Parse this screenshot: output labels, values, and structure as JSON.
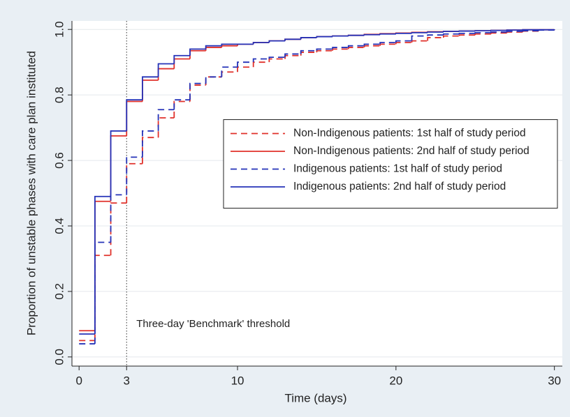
{
  "chart_data": {
    "type": "step",
    "xlabel": "Time (days)",
    "ylabel": "Proportion of unstable phases with care plan instituted",
    "x": [
      0,
      1,
      2,
      3,
      4,
      5,
      6,
      7,
      8,
      9,
      10,
      11,
      12,
      13,
      14,
      15,
      16,
      17,
      18,
      19,
      20,
      21,
      22,
      23,
      24,
      25,
      26,
      27,
      28,
      29,
      30
    ],
    "series": [
      {
        "name": "Non-Indigenous patients: 1st half of study period",
        "color": "#e0302a",
        "style": "dashed",
        "values": [
          0.05,
          0.31,
          0.47,
          0.59,
          0.67,
          0.73,
          0.78,
          0.83,
          0.855,
          0.87,
          0.885,
          0.9,
          0.91,
          0.92,
          0.93,
          0.935,
          0.94,
          0.945,
          0.95,
          0.955,
          0.96,
          0.965,
          0.975,
          0.98,
          0.983,
          0.986,
          0.989,
          0.992,
          0.995,
          0.998,
          1.0
        ]
      },
      {
        "name": "Non-Indigenous patients: 2nd half of study period",
        "color": "#e0302a",
        "style": "solid",
        "values": [
          0.08,
          0.475,
          0.675,
          0.78,
          0.845,
          0.88,
          0.91,
          0.935,
          0.945,
          0.95,
          0.955,
          0.96,
          0.965,
          0.97,
          0.975,
          0.978,
          0.98,
          0.982,
          0.985,
          0.987,
          0.989,
          0.991,
          0.993,
          0.994,
          0.995,
          0.996,
          0.997,
          0.998,
          0.999,
          0.999,
          1.0
        ]
      },
      {
        "name": "Indigenous patients: 1st half of study period",
        "color": "#2432b8",
        "style": "dashed",
        "values": [
          0.04,
          0.35,
          0.495,
          0.61,
          0.69,
          0.755,
          0.785,
          0.835,
          0.855,
          0.885,
          0.9,
          0.91,
          0.915,
          0.925,
          0.935,
          0.94,
          0.945,
          0.95,
          0.955,
          0.96,
          0.965,
          0.98,
          0.983,
          0.986,
          0.988,
          0.99,
          0.992,
          0.994,
          0.996,
          0.998,
          1.0
        ]
      },
      {
        "name": "Indigenous patients: 2nd half of study period",
        "color": "#2432b8",
        "style": "solid",
        "values": [
          0.07,
          0.49,
          0.69,
          0.785,
          0.855,
          0.895,
          0.92,
          0.94,
          0.95,
          0.955,
          0.955,
          0.96,
          0.965,
          0.97,
          0.975,
          0.978,
          0.98,
          0.982,
          0.984,
          0.986,
          0.988,
          0.99,
          0.992,
          0.994,
          0.995,
          0.996,
          0.997,
          0.998,
          0.999,
          0.999,
          1.0
        ]
      }
    ],
    "xlim": [
      -0.45,
      30.5
    ],
    "ylim": [
      -0.028,
      1.026
    ],
    "xticks": [
      0,
      3,
      10,
      20,
      30
    ],
    "yticks": [
      {
        "value": 0,
        "label": "0.0"
      },
      0.2,
      0.4,
      0.6,
      0.8,
      {
        "value": 1,
        "label": "1.0"
      }
    ],
    "grid": true,
    "legend": "center right",
    "annotations": [
      {
        "x": 3,
        "text": "Three-day 'Benchmark' threshold"
      }
    ]
  }
}
